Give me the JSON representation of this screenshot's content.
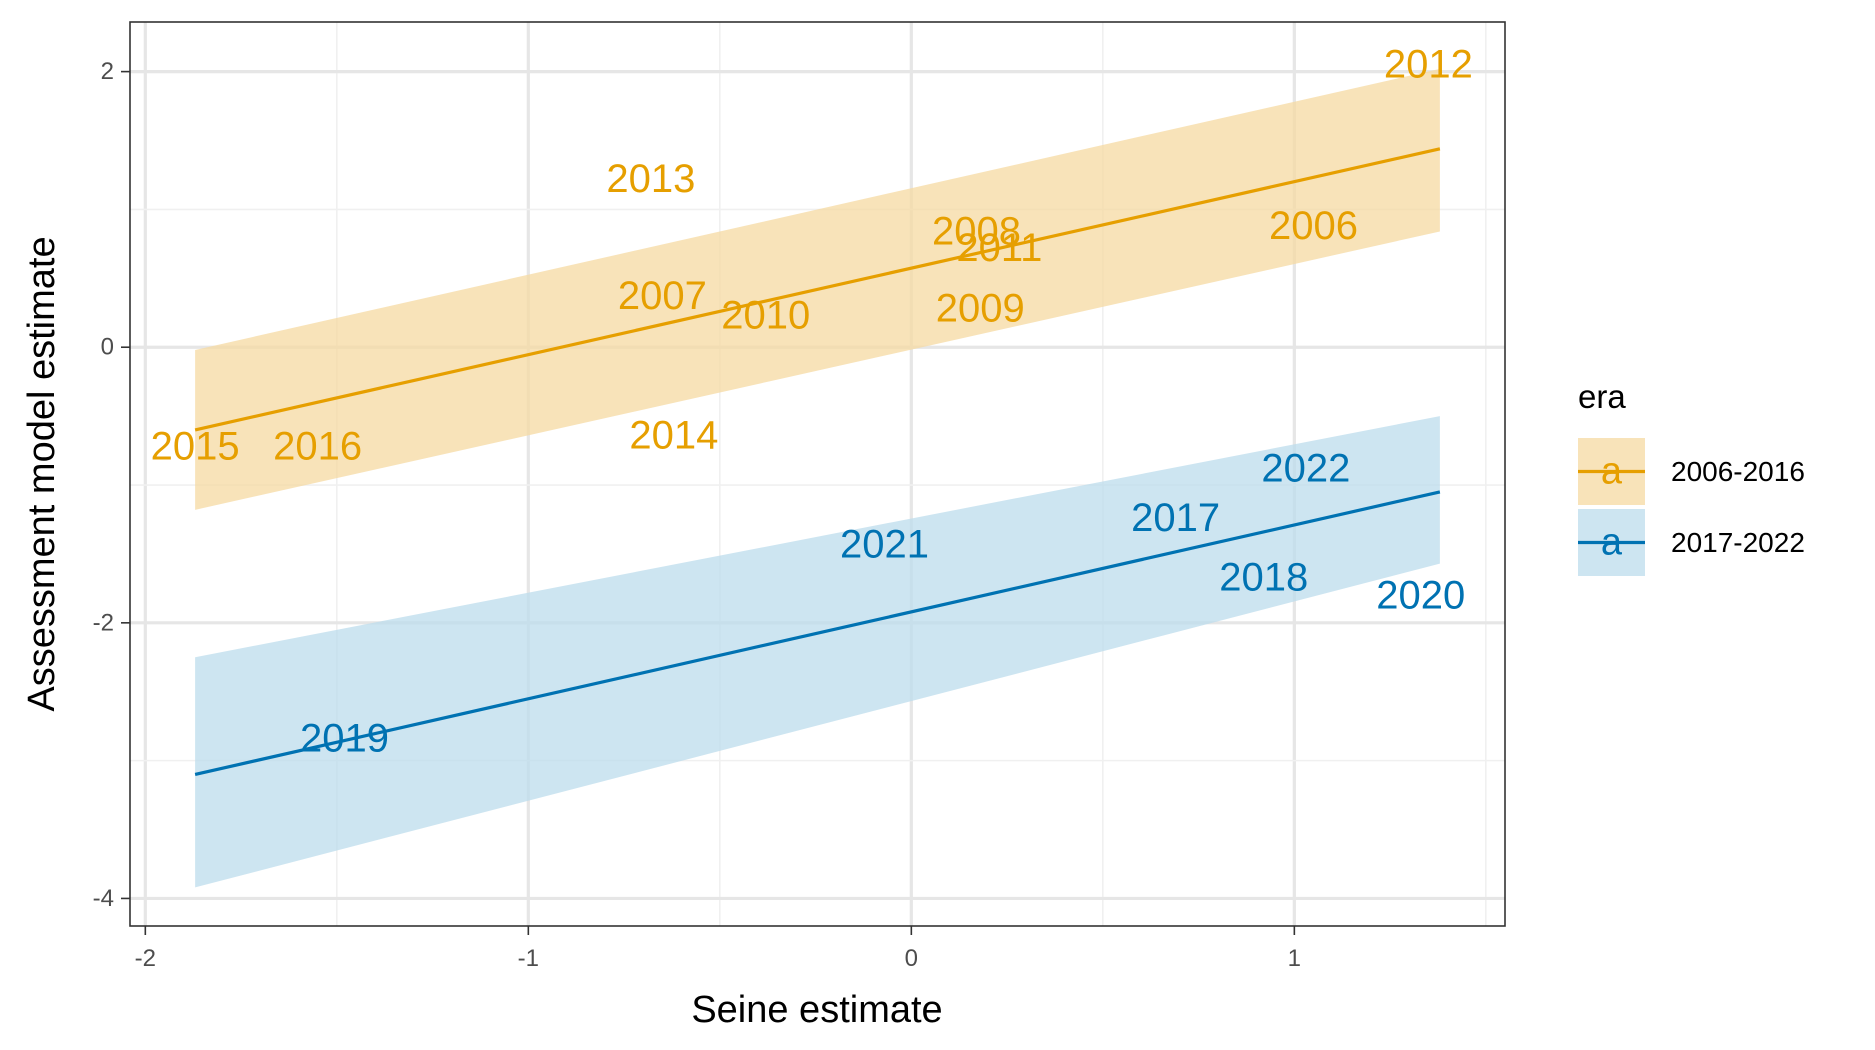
{
  "chart_data": {
    "type": "scatter",
    "title": "",
    "xlabel": "Seine estimate",
    "ylabel": "Assessment model estimate",
    "xlim": [
      -2.04,
      1.55
    ],
    "ylim": [
      -4.2,
      2.36
    ],
    "x_ticks": [
      -2,
      -1,
      0,
      1
    ],
    "x_tick_labels": [
      "-2",
      "-1",
      "0",
      "1"
    ],
    "y_ticks": [
      -4,
      -2,
      0,
      2
    ],
    "y_tick_labels": [
      "-4",
      "-2",
      "0",
      "2"
    ],
    "grid": true,
    "legend": {
      "title": "era",
      "position": "right",
      "glyph": "a"
    },
    "series": [
      {
        "name": "2006-2016",
        "color": "#E69F00",
        "fill_color": "#F5D9A1",
        "points": [
          {
            "label": "2006",
            "x": 1.05,
            "y": 0.88
          },
          {
            "label": "2007",
            "x": -0.65,
            "y": 0.37
          },
          {
            "label": "2008",
            "x": 0.17,
            "y": 0.84
          },
          {
            "label": "2009",
            "x": 0.18,
            "y": 0.28
          },
          {
            "label": "2010",
            "x": -0.38,
            "y": 0.23
          },
          {
            "label": "2011",
            "x": 0.23,
            "y": 0.72
          },
          {
            "label": "2012",
            "x": 1.35,
            "y": 2.05
          },
          {
            "label": "2013",
            "x": -0.68,
            "y": 1.22
          },
          {
            "label": "2014",
            "x": -0.62,
            "y": -0.64
          },
          {
            "label": "2015",
            "x": -1.87,
            "y": -0.72
          },
          {
            "label": "2016",
            "x": -1.55,
            "y": -0.72
          }
        ],
        "fit": {
          "x": [
            -1.87,
            1.38
          ],
          "y": [
            -0.6,
            1.44
          ]
        },
        "band": {
          "x": [
            -1.87,
            1.38
          ],
          "lower": [
            -1.18,
            0.84
          ],
          "upper": [
            -0.02,
            2.02
          ]
        }
      },
      {
        "name": "2017-2022",
        "color": "#0072B2",
        "fill_color": "#BCDCEC",
        "points": [
          {
            "label": "2017",
            "x": 0.69,
            "y": -1.24
          },
          {
            "label": "2018",
            "x": 0.92,
            "y": -1.67
          },
          {
            "label": "2019",
            "x": -1.48,
            "y": -2.84
          },
          {
            "label": "2020",
            "x": 1.33,
            "y": -1.8
          },
          {
            "label": "2021",
            "x": -0.07,
            "y": -1.43
          },
          {
            "label": "2022",
            "x": 1.03,
            "y": -0.88
          }
        ],
        "fit": {
          "x": [
            -1.87,
            1.38
          ],
          "y": [
            -3.1,
            -1.05
          ]
        },
        "band": {
          "x": [
            -1.87,
            1.38
          ],
          "lower": [
            -3.92,
            -1.57
          ],
          "upper": [
            -2.25,
            -0.5
          ]
        }
      }
    ]
  }
}
